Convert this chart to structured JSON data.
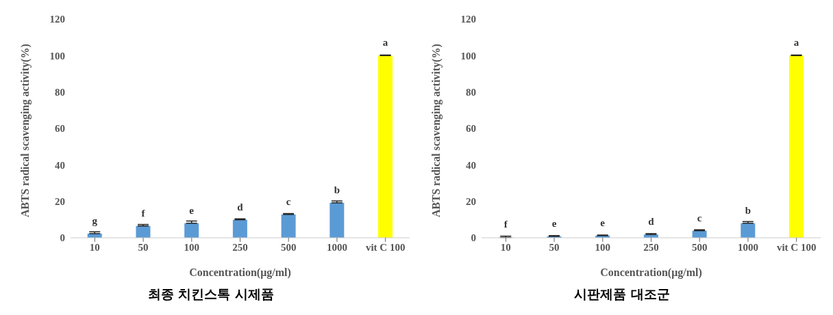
{
  "chart_data": [
    {
      "type": "bar",
      "title": "최종 치킨스톡 시제품",
      "xlabel": "Concentration(μg/ml)",
      "ylabel": "ABTS radical scavenging activity(%)",
      "categories": [
        "10",
        "50",
        "100",
        "250",
        "500",
        "1000",
        "vit C 100"
      ],
      "values": [
        2.3,
        6.5,
        8.0,
        9.9,
        12.8,
        19.2,
        100
      ],
      "errors": [
        [
          2.3,
          3.3
        ],
        [
          6.5,
          7.3
        ],
        [
          8.0,
          9.2
        ],
        [
          9.9,
          10.4
        ],
        [
          12.8,
          13.3
        ],
        [
          19.2,
          20.2
        ],
        [
          100,
          100.3
        ]
      ],
      "colors": [
        "#5b9bd5",
        "#5b9bd5",
        "#5b9bd5",
        "#5b9bd5",
        "#5b9bd5",
        "#5b9bd5",
        "#ffff00"
      ],
      "value_labels": [
        "g",
        "f",
        "e",
        "d",
        "c",
        "b",
        "a"
      ],
      "ylim": [
        0,
        120
      ],
      "yticks": [
        0,
        20,
        40,
        60,
        80,
        100,
        120
      ],
      "grid": false,
      "legend": false
    },
    {
      "type": "bar",
      "title": "시판제품 대조군",
      "xlabel": "Concentration(μg/ml)",
      "ylabel": "ABTS radical scavenging activity(%)",
      "categories": [
        "10",
        "50",
        "100",
        "250",
        "500",
        "1000",
        "vit C 100"
      ],
      "values": [
        0.2,
        0.8,
        1.2,
        1.8,
        3.9,
        8.0,
        100
      ],
      "errors": [
        [
          0.2,
          0.9
        ],
        [
          0.8,
          1.2
        ],
        [
          1.2,
          1.5
        ],
        [
          1.8,
          2.3
        ],
        [
          3.9,
          4.4
        ],
        [
          8.0,
          8.9
        ],
        [
          100,
          100.3
        ]
      ],
      "colors": [
        "#5b9bd5",
        "#5b9bd5",
        "#5b9bd5",
        "#5b9bd5",
        "#5b9bd5",
        "#5b9bd5",
        "#ffff00"
      ],
      "value_labels": [
        "f",
        "e",
        "e",
        "d",
        "c",
        "b",
        "a"
      ],
      "ylim": [
        0,
        120
      ],
      "yticks": [
        0,
        20,
        40,
        60,
        80,
        100,
        120
      ],
      "grid": false,
      "legend": false
    }
  ]
}
